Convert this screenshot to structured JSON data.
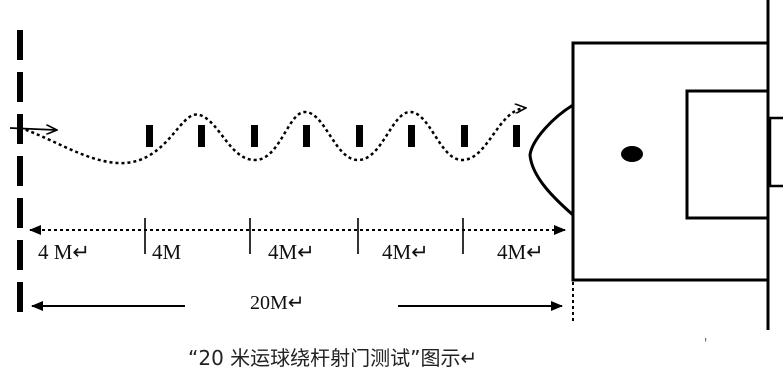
{
  "diagram": {
    "segment_labels": [
      "4 M↵",
      "4M",
      "4M↵",
      "4M↵",
      "4M↵"
    ],
    "total_label": "20M↵",
    "caption": "“20 米运球绕杆射门测试”图示↵",
    "stray_mark": "'",
    "marker_count": 8,
    "line_color": "#000000"
  }
}
